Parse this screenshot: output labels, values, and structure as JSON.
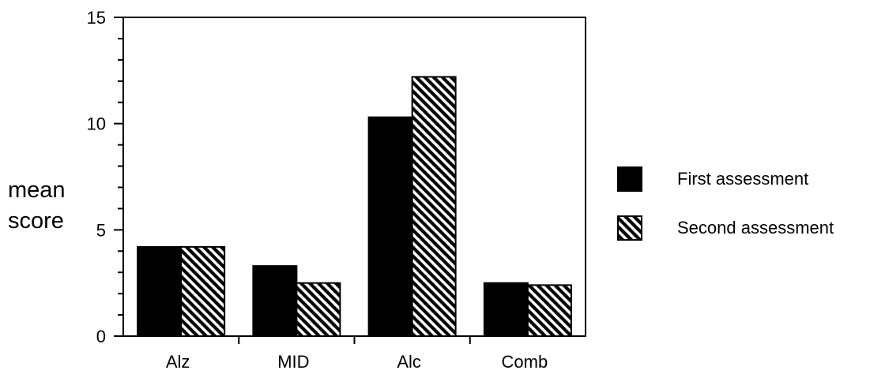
{
  "chart_data": {
    "type": "bar",
    "title": "",
    "xlabel": "",
    "ylabel_lines": [
      "mean",
      "score"
    ],
    "categories": [
      "Alz",
      "MID",
      "Alc",
      "Comb"
    ],
    "series": [
      {
        "name": "First assessment",
        "values": [
          4.2,
          3.3,
          10.3,
          2.5
        ],
        "pattern": "solid",
        "color": "#000000"
      },
      {
        "name": "Second assessment",
        "values": [
          4.2,
          2.5,
          12.2,
          2.4
        ],
        "pattern": "diagonal-hatch",
        "color": "#000000"
      }
    ],
    "ylim": [
      0,
      15
    ],
    "yticks": [
      0,
      5,
      10,
      15
    ],
    "grid": false,
    "legend_position": "right"
  }
}
